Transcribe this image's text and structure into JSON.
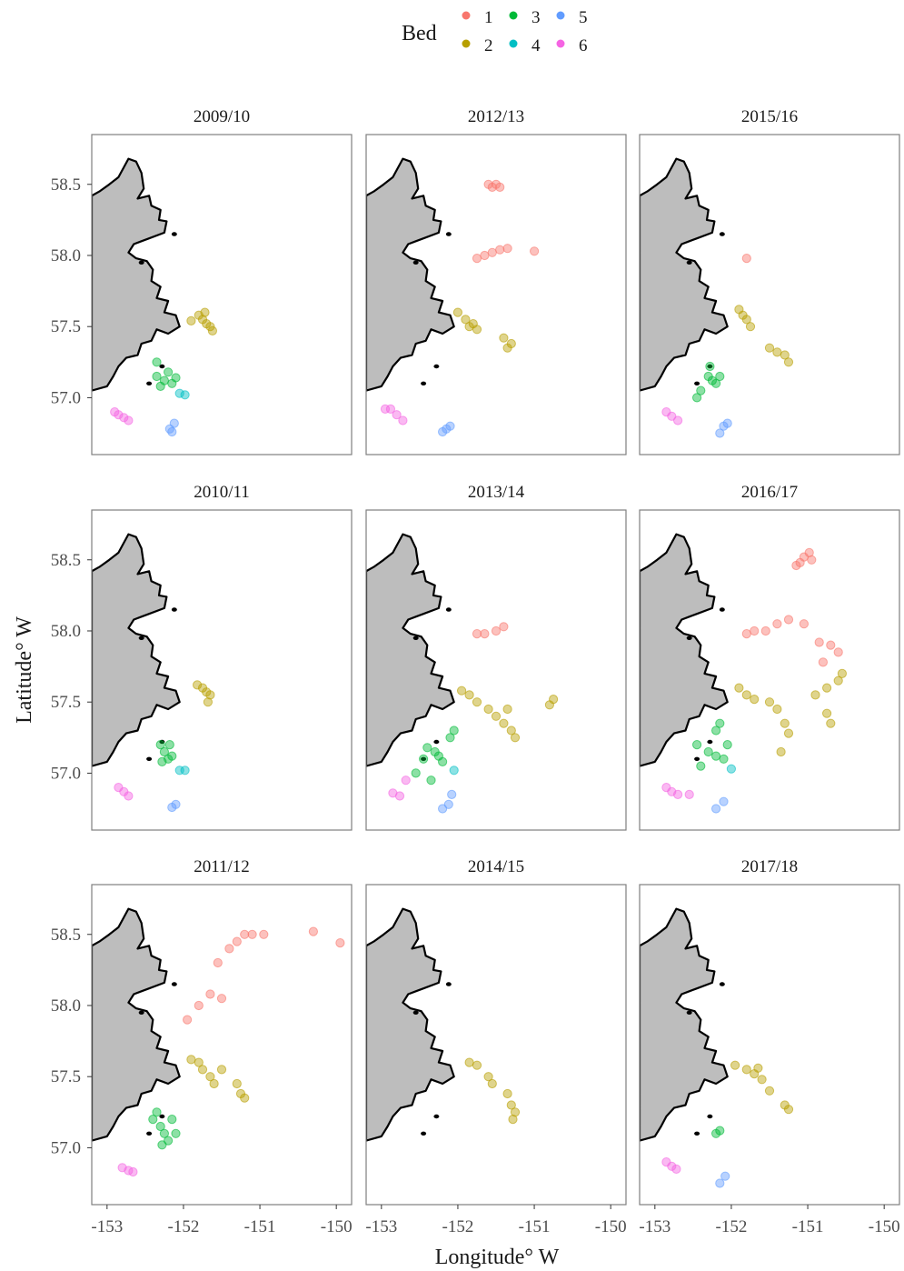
{
  "chart_data": {
    "type": "scatter",
    "title": "",
    "xlabel": "Longitude° W",
    "ylabel": "Latitude° W",
    "xlim": [
      -153.2,
      -149.8
    ],
    "ylim": [
      56.6,
      58.85
    ],
    "x_ticks": [
      -153,
      -152,
      -151,
      -150
    ],
    "x_tick_labels": [
      "-153",
      "-152",
      "-151",
      "-150"
    ],
    "y_ticks": [
      57.0,
      57.5,
      58.0,
      58.5
    ],
    "y_tick_labels": [
      "57.0",
      "57.5",
      "58.0",
      "58.5"
    ],
    "grid": false,
    "legend": {
      "title": "Bed",
      "position": "top",
      "entries": [
        {
          "name": "1",
          "color": "#F8766D"
        },
        {
          "name": "2",
          "color": "#B79F00"
        },
        {
          "name": "3",
          "color": "#00BA38"
        },
        {
          "name": "4",
          "color": "#00BFC4"
        },
        {
          "name": "5",
          "color": "#619CFF"
        },
        {
          "name": "6",
          "color": "#F564E3"
        }
      ]
    },
    "facets": [
      {
        "season": "2009/10",
        "beds": {
          "2": [
            [
              -151.8,
              57.58
            ],
            [
              -151.75,
              57.55
            ],
            [
              -151.7,
              57.52
            ],
            [
              -151.65,
              57.5
            ],
            [
              -151.72,
              57.6
            ],
            [
              -151.62,
              57.47
            ],
            [
              -151.9,
              57.54
            ]
          ],
          "3": [
            [
              -152.35,
              57.15
            ],
            [
              -152.25,
              57.12
            ],
            [
              -152.15,
              57.1
            ],
            [
              -152.2,
              57.18
            ],
            [
              -152.3,
              57.08
            ],
            [
              -152.1,
              57.14
            ],
            [
              -152.35,
              57.25
            ]
          ],
          "4": [
            [
              -152.05,
              57.03
            ],
            [
              -151.98,
              57.02
            ]
          ],
          "5": [
            [
              -152.18,
              56.78
            ],
            [
              -152.12,
              56.82
            ],
            [
              -152.15,
              56.76
            ]
          ],
          "6": [
            [
              -152.85,
              56.88
            ],
            [
              -152.78,
              56.86
            ],
            [
              -152.72,
              56.84
            ],
            [
              -152.9,
              56.9
            ]
          ]
        }
      },
      {
        "season": "2010/11",
        "beds": {
          "2": [
            [
              -151.75,
              57.6
            ],
            [
              -151.7,
              57.57
            ],
            [
              -151.65,
              57.55
            ],
            [
              -151.68,
              57.5
            ],
            [
              -151.82,
              57.62
            ]
          ],
          "3": [
            [
              -152.3,
              57.2
            ],
            [
              -152.25,
              57.15
            ],
            [
              -152.2,
              57.1
            ],
            [
              -152.15,
              57.12
            ],
            [
              -152.28,
              57.08
            ],
            [
              -152.18,
              57.2
            ]
          ],
          "4": [
            [
              -152.05,
              57.02
            ],
            [
              -151.98,
              57.02
            ]
          ],
          "5": [
            [
              -152.15,
              56.76
            ],
            [
              -152.1,
              56.78
            ]
          ],
          "6": [
            [
              -152.85,
              56.9
            ],
            [
              -152.78,
              56.87
            ],
            [
              -152.72,
              56.84
            ]
          ]
        }
      },
      {
        "season": "2011/12",
        "beds": {
          "1": [
            [
              -151.95,
              57.9
            ],
            [
              -151.8,
              58.0
            ],
            [
              -151.65,
              58.08
            ],
            [
              -151.5,
              58.05
            ],
            [
              -151.4,
              58.4
            ],
            [
              -151.3,
              58.45
            ],
            [
              -151.2,
              58.5
            ],
            [
              -151.1,
              58.5
            ],
            [
              -150.95,
              58.5
            ],
            [
              -150.3,
              58.52
            ],
            [
              -149.95,
              58.44
            ],
            [
              -151.55,
              58.3
            ]
          ],
          "2": [
            [
              -151.9,
              57.62
            ],
            [
              -151.8,
              57.6
            ],
            [
              -151.75,
              57.55
            ],
            [
              -151.65,
              57.5
            ],
            [
              -151.6,
              57.45
            ],
            [
              -151.5,
              57.55
            ],
            [
              -151.3,
              57.45
            ],
            [
              -151.25,
              57.38
            ],
            [
              -151.2,
              57.35
            ]
          ],
          "3": [
            [
              -152.4,
              57.2
            ],
            [
              -152.3,
              57.15
            ],
            [
              -152.25,
              57.1
            ],
            [
              -152.2,
              57.05
            ],
            [
              -152.15,
              57.2
            ],
            [
              -152.1,
              57.1
            ],
            [
              -152.35,
              57.25
            ],
            [
              -152.28,
              57.02
            ]
          ],
          "6": [
            [
              -152.8,
              56.86
            ],
            [
              -152.72,
              56.84
            ],
            [
              -152.66,
              56.83
            ]
          ]
        }
      },
      {
        "season": "2012/13",
        "beds": {
          "1": [
            [
              -151.6,
              58.5
            ],
            [
              -151.5,
              58.5
            ],
            [
              -151.45,
              58.48
            ],
            [
              -151.55,
              58.48
            ],
            [
              -151.75,
              57.98
            ],
            [
              -151.65,
              58.0
            ],
            [
              -151.55,
              58.02
            ],
            [
              -151.45,
              58.04
            ],
            [
              -151.35,
              58.05
            ],
            [
              -151.0,
              58.03
            ]
          ],
          "2": [
            [
              -152.0,
              57.6
            ],
            [
              -151.9,
              57.55
            ],
            [
              -151.8,
              57.52
            ],
            [
              -151.75,
              57.48
            ],
            [
              -151.85,
              57.5
            ],
            [
              -151.4,
              57.42
            ],
            [
              -151.3,
              57.38
            ],
            [
              -151.35,
              57.35
            ]
          ],
          "5": [
            [
              -152.2,
              56.76
            ],
            [
              -152.1,
              56.8
            ],
            [
              -152.15,
              56.78
            ]
          ],
          "6": [
            [
              -152.88,
              56.92
            ],
            [
              -152.8,
              56.88
            ],
            [
              -152.72,
              56.84
            ],
            [
              -152.95,
              56.92
            ]
          ]
        }
      },
      {
        "season": "2013/14",
        "beds": {
          "1": [
            [
              -151.75,
              57.98
            ],
            [
              -151.65,
              57.98
            ],
            [
              -151.5,
              58.0
            ],
            [
              -151.4,
              58.03
            ]
          ],
          "2": [
            [
              -151.95,
              57.58
            ],
            [
              -151.85,
              57.55
            ],
            [
              -151.75,
              57.5
            ],
            [
              -151.6,
              57.45
            ],
            [
              -151.5,
              57.4
            ],
            [
              -151.4,
              57.35
            ],
            [
              -151.3,
              57.3
            ],
            [
              -151.25,
              57.25
            ],
            [
              -151.35,
              57.45
            ],
            [
              -150.75,
              57.52
            ],
            [
              -150.8,
              57.48
            ]
          ],
          "3": [
            [
              -152.4,
              57.18
            ],
            [
              -152.3,
              57.15
            ],
            [
              -152.25,
              57.12
            ],
            [
              -152.2,
              57.08
            ],
            [
              -152.45,
              57.1
            ],
            [
              -152.55,
              57.0
            ],
            [
              -152.1,
              57.25
            ],
            [
              -152.05,
              57.3
            ],
            [
              -152.35,
              56.95
            ]
          ],
          "4": [
            [
              -152.05,
              57.02
            ]
          ],
          "5": [
            [
              -152.2,
              56.75
            ],
            [
              -152.12,
              56.78
            ],
            [
              -152.08,
              56.85
            ]
          ],
          "6": [
            [
              -152.85,
              56.86
            ],
            [
              -152.76,
              56.84
            ],
            [
              -152.68,
              56.95
            ]
          ]
        }
      },
      {
        "season": "2014/15",
        "beds": {
          "2": [
            [
              -151.85,
              57.6
            ],
            [
              -151.75,
              57.58
            ],
            [
              -151.6,
              57.5
            ],
            [
              -151.55,
              57.45
            ],
            [
              -151.35,
              57.38
            ],
            [
              -151.3,
              57.3
            ],
            [
              -151.25,
              57.25
            ],
            [
              -151.28,
              57.2
            ]
          ]
        }
      },
      {
        "season": "2015/16",
        "beds": {
          "1": [
            [
              -151.8,
              57.98
            ]
          ],
          "2": [
            [
              -151.9,
              57.62
            ],
            [
              -151.85,
              57.58
            ],
            [
              -151.8,
              57.55
            ],
            [
              -151.75,
              57.5
            ],
            [
              -151.5,
              57.35
            ],
            [
              -151.4,
              57.32
            ],
            [
              -151.3,
              57.3
            ],
            [
              -151.25,
              57.25
            ]
          ],
          "3": [
            [
              -152.3,
              57.15
            ],
            [
              -152.25,
              57.12
            ],
            [
              -152.2,
              57.1
            ],
            [
              -152.15,
              57.15
            ],
            [
              -152.4,
              57.05
            ],
            [
              -152.45,
              57.0
            ],
            [
              -152.28,
              57.22
            ]
          ],
          "5": [
            [
              -152.15,
              56.75
            ],
            [
              -152.1,
              56.8
            ],
            [
              -152.05,
              56.82
            ]
          ],
          "6": [
            [
              -152.85,
              56.9
            ],
            [
              -152.78,
              56.87
            ],
            [
              -152.7,
              56.84
            ]
          ]
        }
      },
      {
        "season": "2016/17",
        "beds": {
          "1": [
            [
              -151.8,
              57.98
            ],
            [
              -151.7,
              58.0
            ],
            [
              -151.55,
              58.0
            ],
            [
              -151.4,
              58.05
            ],
            [
              -151.25,
              58.08
            ],
            [
              -151.05,
              58.05
            ],
            [
              -150.85,
              57.92
            ],
            [
              -150.7,
              57.9
            ],
            [
              -150.6,
              57.85
            ],
            [
              -150.8,
              57.78
            ],
            [
              -151.1,
              58.48
            ],
            [
              -151.05,
              58.52
            ],
            [
              -150.98,
              58.55
            ],
            [
              -150.95,
              58.5
            ],
            [
              -151.15,
              58.46
            ]
          ],
          "2": [
            [
              -151.9,
              57.6
            ],
            [
              -151.8,
              57.55
            ],
            [
              -151.7,
              57.52
            ],
            [
              -151.5,
              57.5
            ],
            [
              -151.4,
              57.45
            ],
            [
              -151.3,
              57.35
            ],
            [
              -151.25,
              57.28
            ],
            [
              -151.35,
              57.15
            ],
            [
              -150.9,
              57.55
            ],
            [
              -150.75,
              57.6
            ],
            [
              -150.6,
              57.65
            ],
            [
              -150.55,
              57.7
            ],
            [
              -150.7,
              57.35
            ],
            [
              -150.75,
              57.42
            ]
          ],
          "3": [
            [
              -152.3,
              57.15
            ],
            [
              -152.2,
              57.12
            ],
            [
              -152.1,
              57.1
            ],
            [
              -152.45,
              57.2
            ],
            [
              -152.4,
              57.05
            ],
            [
              -152.2,
              57.3
            ],
            [
              -152.15,
              57.35
            ],
            [
              -152.05,
              57.2
            ]
          ],
          "4": [
            [
              -152.0,
              57.03
            ]
          ],
          "5": [
            [
              -152.2,
              56.75
            ],
            [
              -152.1,
              56.8
            ]
          ],
          "6": [
            [
              -152.85,
              56.9
            ],
            [
              -152.78,
              56.87
            ],
            [
              -152.7,
              56.85
            ],
            [
              -152.55,
              56.85
            ]
          ]
        }
      },
      {
        "season": "2017/18",
        "beds": {
          "2": [
            [
              -151.95,
              57.58
            ],
            [
              -151.8,
              57.55
            ],
            [
              -151.7,
              57.52
            ],
            [
              -151.6,
              57.48
            ],
            [
              -151.5,
              57.4
            ],
            [
              -151.3,
              57.3
            ],
            [
              -151.25,
              57.27
            ],
            [
              -151.65,
              57.56
            ]
          ],
          "3": [
            [
              -152.2,
              57.1
            ],
            [
              -152.15,
              57.12
            ]
          ],
          "5": [
            [
              -152.15,
              56.75
            ],
            [
              -152.08,
              56.8
            ]
          ],
          "6": [
            [
              -152.85,
              56.9
            ],
            [
              -152.78,
              56.87
            ],
            [
              -152.72,
              56.85
            ]
          ]
        }
      }
    ]
  }
}
